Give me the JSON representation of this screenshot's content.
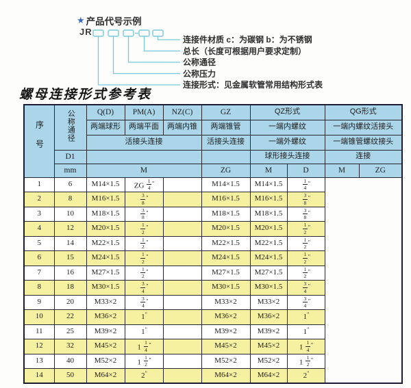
{
  "colors": {
    "header_blue": "#abd6e9",
    "row_yellow": "#f6f1a1",
    "connector_cyan": "#74c8dc",
    "star_blue": "#3a68c0",
    "table_border": "#1a1a33"
  },
  "diagram": {
    "star_icon": "★",
    "title": "产品代号示例",
    "code_prefix": "JR",
    "labels": [
      "连接件材质  c：为碳钢  b：为不锈钢",
      "总长（长度可根据用户要求定制）",
      "公称通径",
      "公称压力",
      "连接形式：见金属软管常用结构形式表"
    ]
  },
  "table": {
    "title": "螺母连接形式参考表",
    "header": {
      "col_no": "序号",
      "col_dn": "公称通径",
      "d1": "D1",
      "mm": "mm",
      "q": "Q(D)",
      "pm": "PM(A)",
      "nz": "NZ(C)",
      "gz": "GZ",
      "qz": "QZ形式",
      "qg": "QG形式",
      "q_sub": "两端球形",
      "pm_sub": "两端平面",
      "nz_sub": "两端内锥",
      "gz_sub": "两端锥管",
      "qz_sub1": "一端内螺纹",
      "qg_sub1": "一端内螺纹活接头",
      "union_conn": "活接头连接",
      "gz_conn": "活接头连接",
      "qz_sub2": "一端外螺纹",
      "qg_sub2": "一端锥管螺纹接头",
      "ball_conn": "球形接头连接",
      "qg_conn": "连接",
      "m": "M",
      "zg": "ZG",
      "qz_m": "M",
      "qz_d": "D",
      "qg_m": "M",
      "qg_zg": "ZG"
    },
    "rows": [
      [
        "1",
        "6",
        "M14×1.5",
        "ZG 1/4\"",
        "",
        "M14×1.5",
        "M14×1.5",
        "1/4\""
      ],
      [
        "2",
        "8",
        "M16×1.5",
        "3/8\"",
        "",
        "M16×1.5",
        "M16×1.5",
        "3/8\""
      ],
      [
        "3",
        "10",
        "M18×1.5",
        "3/8\"",
        "",
        "M18×1.5",
        "M18×1.5",
        "3/8\""
      ],
      [
        "4",
        "12",
        "M20×1.5",
        "1/2\"",
        "",
        "M20×1.5",
        "M20×1.5",
        "1/2\""
      ],
      [
        "5",
        "14",
        "M22×1.5",
        "1/2\"",
        "",
        "M22×1.5",
        "M22×1.5",
        "1/2\""
      ],
      [
        "6",
        "15",
        "M24×1.5",
        "1/2\"",
        "",
        "M24×1.5",
        "M24×1.5",
        "1/2\""
      ],
      [
        "7",
        "16",
        "M27×1.5",
        "1/2\"",
        "",
        "M27×1.5",
        "M27×1.5",
        "1/2\""
      ],
      [
        "8",
        "18",
        "M30×1.5",
        "3/4\"",
        "",
        "M30×1.5",
        "M30×1.5",
        "3/4\""
      ],
      [
        "9",
        "20",
        "M33×2",
        "3/4\"",
        "",
        "M33×2",
        "M33×2",
        "3/4\""
      ],
      [
        "10",
        "22",
        "M36×2",
        "1\"",
        "",
        "M36×2",
        "M36×2",
        "1\""
      ],
      [
        "11",
        "25",
        "M39×2",
        "1\"",
        "",
        "M39×2",
        "M39×2",
        "1\""
      ],
      [
        "12",
        "32",
        "M45×2",
        "1 1/4\"",
        "",
        "M45×2",
        "M45×2",
        "1 1/4\""
      ],
      [
        "13",
        "40",
        "M52×2",
        "1 1/2\"",
        "",
        "M52×2",
        "M52×2",
        "1 1/2\""
      ],
      [
        "14",
        "50",
        "M64×2",
        "2\"",
        "",
        "M64×2",
        "M64×2",
        "2\""
      ]
    ]
  }
}
